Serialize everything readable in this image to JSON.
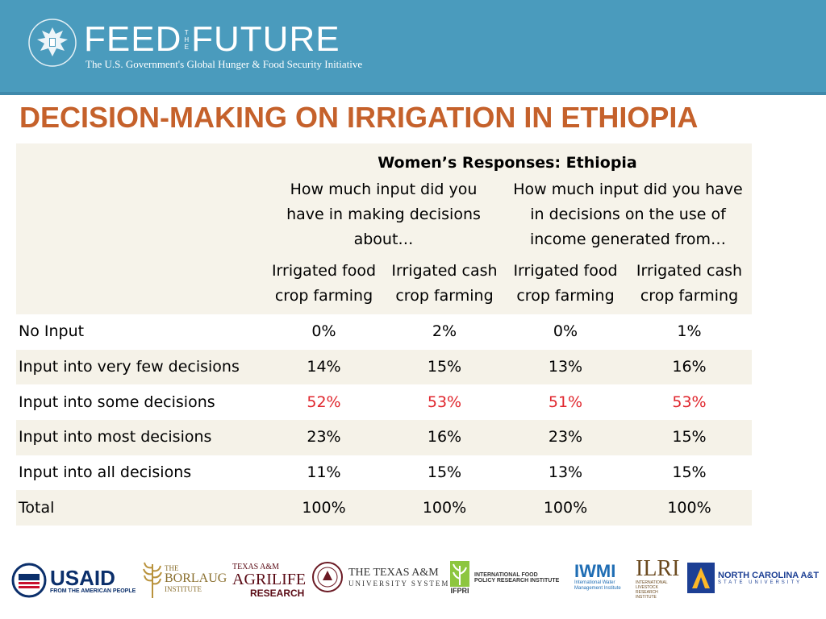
{
  "header": {
    "brand": {
      "left": "FEED",
      "the": [
        "T",
        "H",
        "E"
      ],
      "right": "FUTURE"
    },
    "tagline": "The U.S. Government's Global Hunger & Food Security Initiative"
  },
  "slide_title": "DECISION-MAKING ON IRRIGATION IN ETHIOPIA",
  "table": {
    "group_header": "Women’s Responses: Ethiopia",
    "question_1": "How much input did you have in making decisions about…",
    "question_2": "How much input did you have in decisions on the use of income generated from…",
    "columns": [
      "Irrigated food crop farming",
      "Irrigated cash crop farming",
      "Irrigated food crop farming",
      "Irrigated cash crop farming"
    ],
    "rows": [
      {
        "label": "No Input",
        "values": [
          "0%",
          "2%",
          "0%",
          "1%"
        ]
      },
      {
        "label": "Input into very few decisions",
        "values": [
          "14%",
          "15%",
          "13%",
          "16%"
        ]
      },
      {
        "label": "Input into some decisions",
        "values": [
          "52%",
          "53%",
          "51%",
          "53%"
        ]
      },
      {
        "label": "Input into most decisions",
        "values": [
          "23%",
          "16%",
          "23%",
          "15%"
        ]
      },
      {
        "label": "Input into all decisions",
        "values": [
          "11%",
          "15%",
          "13%",
          "15%"
        ]
      },
      {
        "label": "Total",
        "values": [
          "100%",
          "100%",
          "100%",
          "100%"
        ]
      }
    ],
    "highlight_color": "#e0262d"
  },
  "logos": {
    "usaid": {
      "name": "USAID",
      "sub": "FROM THE AMERICAN PEOPLE"
    },
    "borlaug": {
      "the": "THE",
      "name": "BORLAUG",
      "sub": "INSTITUTE"
    },
    "agrilife": {
      "top": "TEXAS A&M",
      "name": "AGRILIFE",
      "sub": "RESEARCH"
    },
    "tamus": {
      "line1": "THE TEXAS A&M",
      "line2": "UNIVERSITY SYSTEM"
    },
    "ifpri": {
      "name": "IFPRI",
      "line1": "INTERNATIONAL FOOD",
      "line2": "POLICY RESEARCH INSTITUTE"
    },
    "iwmi": {
      "name": "IWMI",
      "sub": "International Water Management Institute"
    },
    "ilri": {
      "name": "ILRI",
      "sub": "INTERNATIONAL LIVESTOCK RESEARCH INSTITUTE"
    },
    "ncat": {
      "line1": "NORTH CAROLINA A&T",
      "line2": "STATE UNIVERSITY"
    }
  },
  "colors": {
    "banner": "#4a9bbd",
    "title": "#c5612b",
    "usaid_blue": "#0b2f6b",
    "usaid_red": "#c8102e"
  }
}
